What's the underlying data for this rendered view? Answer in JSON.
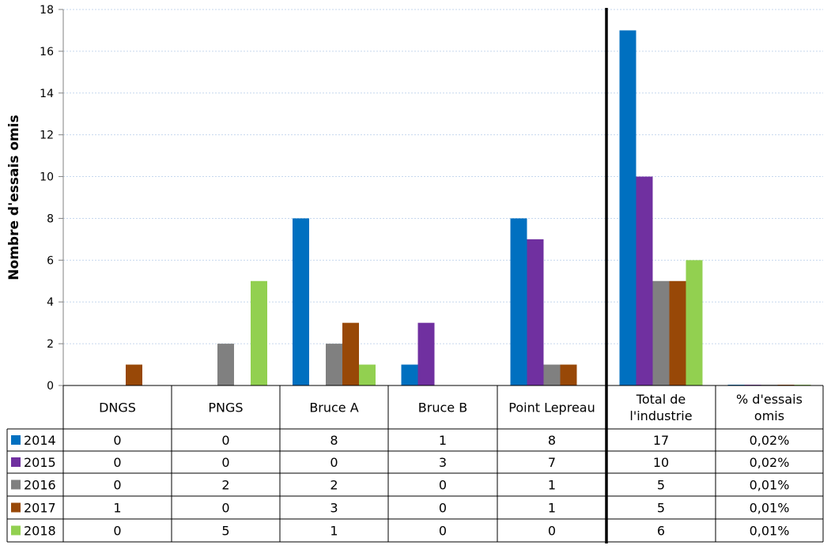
{
  "chart_data": {
    "type": "bar",
    "ylabel": "Nombre d'essais omis",
    "ylim": [
      0,
      18
    ],
    "yticks": [
      "0",
      "2",
      "4",
      "6",
      "8",
      "10",
      "12",
      "14",
      "16",
      "18"
    ],
    "grid": true,
    "categories": [
      "DNGS",
      "PNGS",
      "Bruce A",
      "Bruce B",
      "Point Lepreau",
      "Total de l'industrie",
      "% d'essais omis"
    ],
    "series": [
      {
        "name": "2014",
        "color": "#0070C0",
        "values": [
          0,
          0,
          8,
          1,
          8,
          17,
          0.02
        ]
      },
      {
        "name": "2015",
        "color": "#7030A0",
        "values": [
          0,
          0,
          0,
          3,
          7,
          10,
          0.02
        ]
      },
      {
        "name": "2016",
        "color": "#808080",
        "values": [
          0,
          2,
          2,
          0,
          1,
          5,
          0.01
        ]
      },
      {
        "name": "2017",
        "color": "#984807",
        "values": [
          1,
          0,
          3,
          0,
          1,
          5,
          0.01
        ]
      },
      {
        "name": "2018",
        "color": "#92D050",
        "values": [
          0,
          5,
          1,
          0,
          0,
          6,
          0.01
        ]
      }
    ],
    "table": {
      "header_lines": [
        [
          "DNGS"
        ],
        [
          "PNGS"
        ],
        [
          "Bruce A"
        ],
        [
          "Bruce B"
        ],
        [
          "Point Lepreau"
        ],
        [
          "Total de",
          "l'industrie"
        ],
        [
          "% d'essais",
          "omis"
        ]
      ],
      "rows": [
        [
          "0",
          "0",
          "8",
          "1",
          "8",
          "17",
          "0,02%"
        ],
        [
          "0",
          "0",
          "0",
          "3",
          "7",
          "10",
          "0,02%"
        ],
        [
          "0",
          "2",
          "2",
          "0",
          "1",
          "5",
          "0,01%"
        ],
        [
          "1",
          "0",
          "3",
          "0",
          "1",
          "5",
          "0,01%"
        ],
        [
          "0",
          "5",
          "1",
          "0",
          "0",
          "6",
          "0,01%"
        ]
      ]
    },
    "divider_after_category": 4
  }
}
